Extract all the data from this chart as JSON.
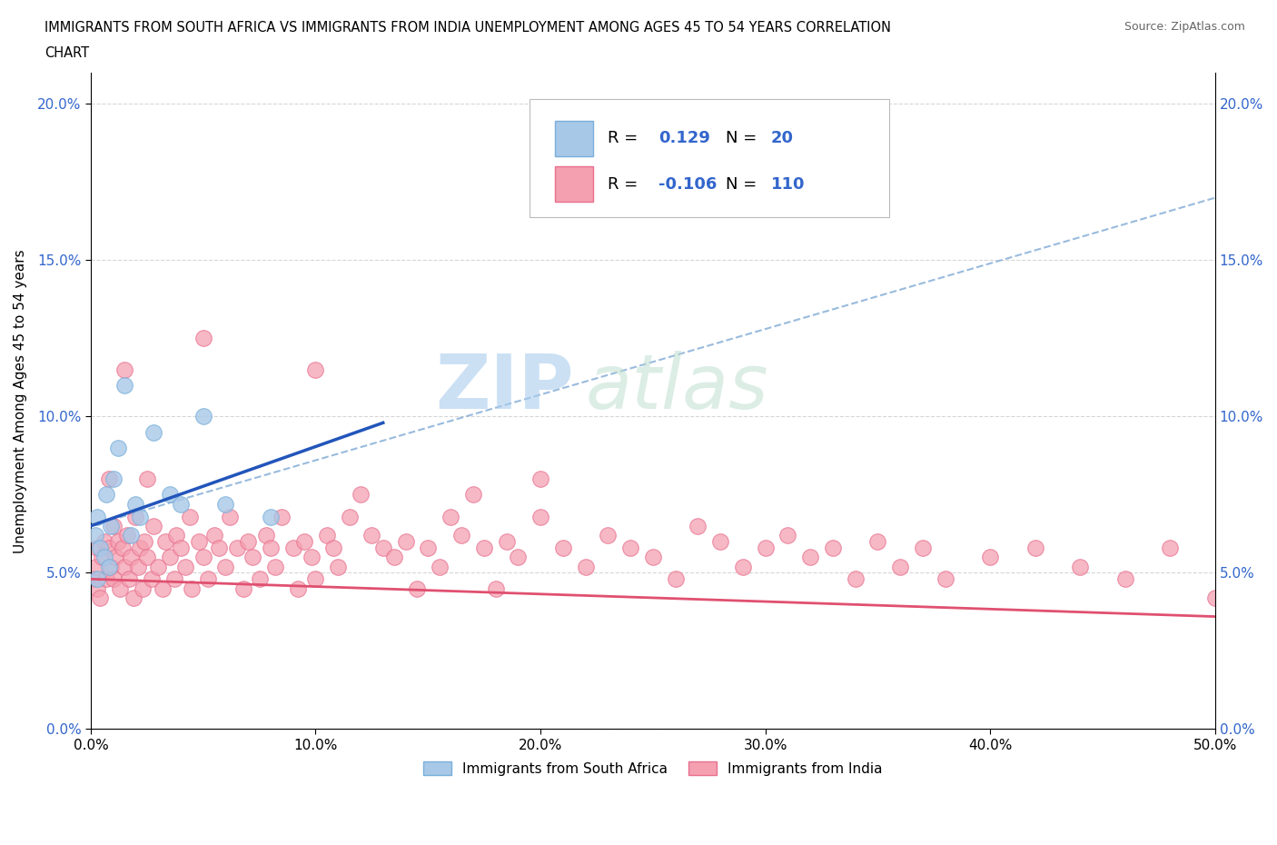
{
  "title_line1": "IMMIGRANTS FROM SOUTH AFRICA VS IMMIGRANTS FROM INDIA UNEMPLOYMENT AMONG AGES 45 TO 54 YEARS CORRELATION",
  "title_line2": "CHART",
  "source_text": "Source: ZipAtlas.com",
  "ylabel": "Unemployment Among Ages 45 to 54 years",
  "xmin": 0.0,
  "xmax": 0.5,
  "ymin": 0.0,
  "ymax": 0.21,
  "yticks": [
    0.0,
    0.05,
    0.1,
    0.15,
    0.2
  ],
  "ytick_labels": [
    "0.0%",
    "5.0%",
    "10.0%",
    "15.0%",
    "20.0%"
  ],
  "xticks": [
    0.0,
    0.1,
    0.2,
    0.3,
    0.4,
    0.5
  ],
  "xtick_labels": [
    "0.0%",
    "10.0%",
    "20.0%",
    "30.0%",
    "40.0%",
    "50.0%"
  ],
  "color_blue_fill": "#A8C8E8",
  "color_blue_edge": "#7AAFDA",
  "color_pink_fill": "#F4A0B0",
  "color_pink_edge": "#E87090",
  "color_line_blue": "#2255BB",
  "color_line_pink": "#E05070",
  "color_dash": "#99BBDD",
  "color_tick_blue": "#3366CC",
  "R_blue": "0.129",
  "N_blue": "20",
  "R_pink": "-0.106",
  "N_pink": "110",
  "legend_label_blue": "Immigrants from South Africa",
  "legend_label_pink": "Immigrants from India",
  "watermark_zip": "ZIP",
  "watermark_atlas": "atlas",
  "sa_x": [
    0.002,
    0.003,
    0.004,
    0.006,
    0.007,
    0.009,
    0.01,
    0.012,
    0.015,
    0.018,
    0.02,
    0.022,
    0.028,
    0.035,
    0.04,
    0.05,
    0.06,
    0.08,
    0.003,
    0.008
  ],
  "sa_y": [
    0.062,
    0.068,
    0.058,
    0.055,
    0.075,
    0.065,
    0.08,
    0.09,
    0.11,
    0.062,
    0.072,
    0.068,
    0.095,
    0.075,
    0.072,
    0.1,
    0.072,
    0.068,
    0.048,
    0.052
  ],
  "india_x": [
    0.001,
    0.002,
    0.003,
    0.003,
    0.004,
    0.005,
    0.006,
    0.007,
    0.008,
    0.009,
    0.01,
    0.01,
    0.011,
    0.012,
    0.013,
    0.014,
    0.015,
    0.016,
    0.017,
    0.018,
    0.019,
    0.02,
    0.021,
    0.022,
    0.023,
    0.024,
    0.025,
    0.027,
    0.028,
    0.03,
    0.032,
    0.033,
    0.035,
    0.037,
    0.038,
    0.04,
    0.042,
    0.044,
    0.045,
    0.048,
    0.05,
    0.052,
    0.055,
    0.057,
    0.06,
    0.062,
    0.065,
    0.068,
    0.07,
    0.072,
    0.075,
    0.078,
    0.08,
    0.082,
    0.085,
    0.09,
    0.092,
    0.095,
    0.098,
    0.1,
    0.105,
    0.108,
    0.11,
    0.115,
    0.12,
    0.125,
    0.13,
    0.135,
    0.14,
    0.145,
    0.15,
    0.155,
    0.16,
    0.165,
    0.17,
    0.175,
    0.18,
    0.185,
    0.19,
    0.2,
    0.21,
    0.22,
    0.23,
    0.24,
    0.25,
    0.26,
    0.27,
    0.28,
    0.29,
    0.3,
    0.31,
    0.32,
    0.33,
    0.34,
    0.35,
    0.36,
    0.37,
    0.38,
    0.4,
    0.42,
    0.44,
    0.46,
    0.48,
    0.5,
    0.008,
    0.015,
    0.025,
    0.05,
    0.1,
    0.2
  ],
  "india_y": [
    0.048,
    0.052,
    0.045,
    0.058,
    0.042,
    0.055,
    0.06,
    0.048,
    0.058,
    0.052,
    0.065,
    0.048,
    0.055,
    0.06,
    0.045,
    0.058,
    0.052,
    0.062,
    0.048,
    0.055,
    0.042,
    0.068,
    0.052,
    0.058,
    0.045,
    0.06,
    0.055,
    0.048,
    0.065,
    0.052,
    0.045,
    0.06,
    0.055,
    0.048,
    0.062,
    0.058,
    0.052,
    0.068,
    0.045,
    0.06,
    0.055,
    0.048,
    0.062,
    0.058,
    0.052,
    0.068,
    0.058,
    0.045,
    0.06,
    0.055,
    0.048,
    0.062,
    0.058,
    0.052,
    0.068,
    0.058,
    0.045,
    0.06,
    0.055,
    0.048,
    0.062,
    0.058,
    0.052,
    0.068,
    0.075,
    0.062,
    0.058,
    0.055,
    0.06,
    0.045,
    0.058,
    0.052,
    0.068,
    0.062,
    0.075,
    0.058,
    0.045,
    0.06,
    0.055,
    0.068,
    0.058,
    0.052,
    0.062,
    0.058,
    0.055,
    0.048,
    0.065,
    0.06,
    0.052,
    0.058,
    0.062,
    0.055,
    0.058,
    0.048,
    0.06,
    0.052,
    0.058,
    0.048,
    0.055,
    0.058,
    0.052,
    0.048,
    0.058,
    0.042,
    0.08,
    0.115,
    0.08,
    0.125,
    0.115,
    0.08
  ],
  "sa_line_x": [
    0.0,
    0.13
  ],
  "sa_line_y": [
    0.065,
    0.098
  ],
  "dash_line_x": [
    0.0,
    0.5
  ],
  "dash_line_y": [
    0.065,
    0.17
  ],
  "india_line_x": [
    0.0,
    0.5
  ],
  "india_line_y": [
    0.048,
    0.036
  ]
}
